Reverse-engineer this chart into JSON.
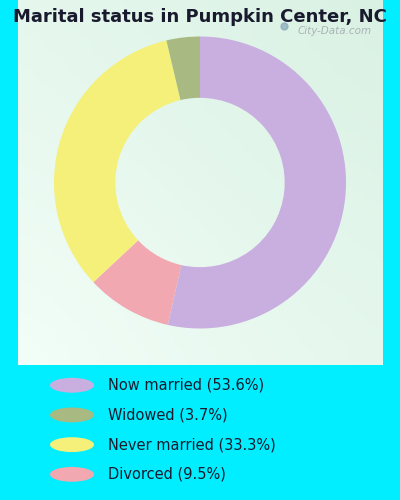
{
  "title": "Marital status in Pumpkin Center, NC",
  "pie_values": [
    53.6,
    9.5,
    33.3,
    3.7
  ],
  "pie_colors": [
    "#c9aee0",
    "#f2a8b0",
    "#f5f07a",
    "#a8ba82"
  ],
  "legend_labels": [
    "Now married (53.6%)",
    "Widowed (3.7%)",
    "Never married (33.3%)",
    "Divorced (9.5%)"
  ],
  "legend_colors": [
    "#c9aee0",
    "#a8ba82",
    "#f5f07a",
    "#f2a8b0"
  ],
  "donut_width": 0.42,
  "chart_bg": "#e8f5ee",
  "outer_bg": "#00eeff",
  "title_fontsize": 13,
  "legend_fontsize": 10.5,
  "watermark": "City-Data.com",
  "start_angle": 90,
  "title_color": "#1a1a2e"
}
